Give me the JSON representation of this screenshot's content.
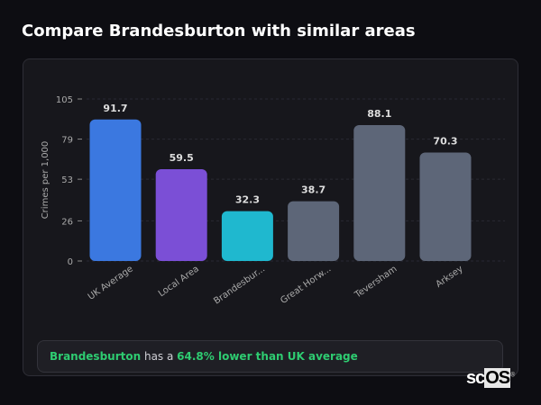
{
  "title": "Compare Brandesburton with similar areas",
  "chart_data": {
    "type": "bar",
    "categories": [
      "UK Average",
      "Local Area",
      "Brandesbur...",
      "Great Horw...",
      "Teversham",
      "Arksey"
    ],
    "values": [
      91.7,
      59.5,
      32.3,
      38.7,
      88.1,
      70.3
    ],
    "colors": [
      "#3b78e0",
      "#7b4fd6",
      "#1fb8cf",
      "#5d6678",
      "#5d6678",
      "#5d6678"
    ],
    "ylabel": "Crimes per 1,000",
    "yticks": [
      0,
      26,
      53,
      79,
      105
    ],
    "ylim": [
      0,
      105
    ],
    "grid": true
  },
  "summary": {
    "place": "Brandesburton",
    "middle": " has a ",
    "highlight": "64.8% lower than UK average"
  },
  "logo": {
    "text1": "sc",
    "text2": "OS",
    "mark": "®"
  }
}
